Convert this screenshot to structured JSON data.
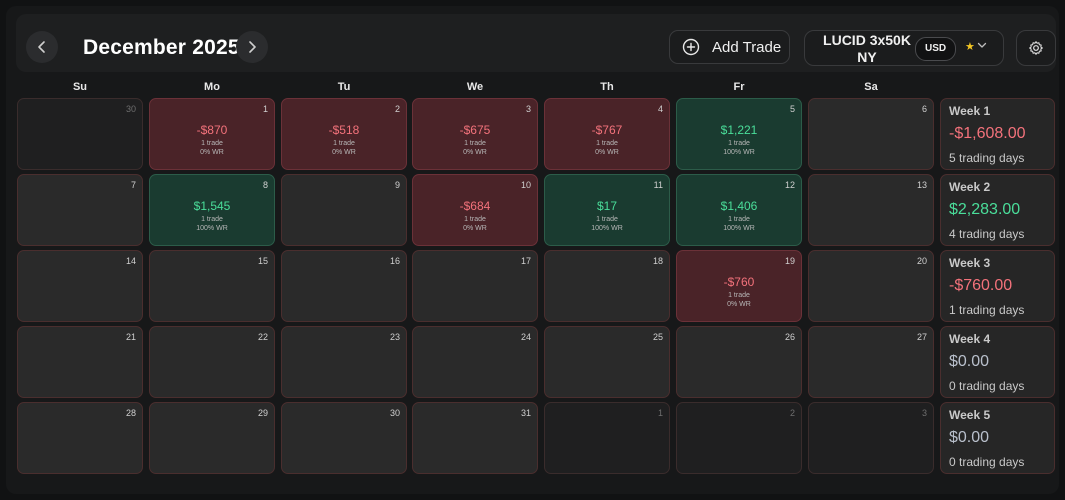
{
  "header": {
    "month_title": "December 2025",
    "add_trade_label": "Add Trade",
    "account_name": "LUCID 3x50K NY",
    "currency": "USD",
    "star_icon": "star-icon",
    "settings_icon": "gear-icon"
  },
  "weekdays": [
    "Su",
    "Mo",
    "Tu",
    "We",
    "Th",
    "Fr",
    "Sa"
  ],
  "weeks": [
    {
      "label": "Week 1",
      "pnl": "-$1,608.00",
      "days": "5 trading days",
      "tone": "neg",
      "cells": [
        {
          "num": "30",
          "status": "outside"
        },
        {
          "num": "1",
          "status": "loss",
          "pnl": "-$870",
          "trades": "1 trade",
          "wr": "0% WR"
        },
        {
          "num": "2",
          "status": "loss",
          "pnl": "-$518",
          "trades": "1 trade",
          "wr": "0% WR"
        },
        {
          "num": "3",
          "status": "loss",
          "pnl": "-$675",
          "trades": "1 trade",
          "wr": "0% WR"
        },
        {
          "num": "4",
          "status": "loss",
          "pnl": "-$767",
          "trades": "1 trade",
          "wr": "0% WR"
        },
        {
          "num": "5",
          "status": "win",
          "pnl": "$1,221",
          "trades": "1 trade",
          "wr": "100% WR"
        },
        {
          "num": "6",
          "status": "empty"
        }
      ]
    },
    {
      "label": "Week 2",
      "pnl": "$2,283.00",
      "days": "4 trading days",
      "tone": "pos",
      "cells": [
        {
          "num": "7",
          "status": "empty"
        },
        {
          "num": "8",
          "status": "win",
          "pnl": "$1,545",
          "trades": "1 trade",
          "wr": "100% WR"
        },
        {
          "num": "9",
          "status": "empty"
        },
        {
          "num": "10",
          "status": "loss",
          "pnl": "-$684",
          "trades": "1 trade",
          "wr": "0% WR"
        },
        {
          "num": "11",
          "status": "win",
          "pnl": "$17",
          "trades": "1 trade",
          "wr": "100% WR"
        },
        {
          "num": "12",
          "status": "win",
          "pnl": "$1,406",
          "trades": "1 trade",
          "wr": "100% WR"
        },
        {
          "num": "13",
          "status": "empty"
        }
      ]
    },
    {
      "label": "Week 3",
      "pnl": "-$760.00",
      "days": "1 trading days",
      "tone": "neg",
      "cells": [
        {
          "num": "14",
          "status": "empty"
        },
        {
          "num": "15",
          "status": "empty"
        },
        {
          "num": "16",
          "status": "empty"
        },
        {
          "num": "17",
          "status": "empty"
        },
        {
          "num": "18",
          "status": "empty"
        },
        {
          "num": "19",
          "status": "loss",
          "pnl": "-$760",
          "trades": "1 trade",
          "wr": "0% WR"
        },
        {
          "num": "20",
          "status": "empty"
        }
      ]
    },
    {
      "label": "Week 4",
      "pnl": "$0.00",
      "days": "0 trading days",
      "tone": "zero",
      "cells": [
        {
          "num": "21",
          "status": "empty"
        },
        {
          "num": "22",
          "status": "empty"
        },
        {
          "num": "23",
          "status": "empty"
        },
        {
          "num": "24",
          "status": "empty"
        },
        {
          "num": "25",
          "status": "empty"
        },
        {
          "num": "26",
          "status": "empty"
        },
        {
          "num": "27",
          "status": "empty"
        }
      ]
    },
    {
      "label": "Week 5",
      "pnl": "$0.00",
      "days": "0 trading days",
      "tone": "zero",
      "cells": [
        {
          "num": "28",
          "status": "empty"
        },
        {
          "num": "29",
          "status": "empty"
        },
        {
          "num": "30",
          "status": "empty"
        },
        {
          "num": "31",
          "status": "empty"
        },
        {
          "num": "1",
          "status": "outside"
        },
        {
          "num": "2",
          "status": "outside"
        },
        {
          "num": "3",
          "status": "outside"
        }
      ]
    }
  ]
}
